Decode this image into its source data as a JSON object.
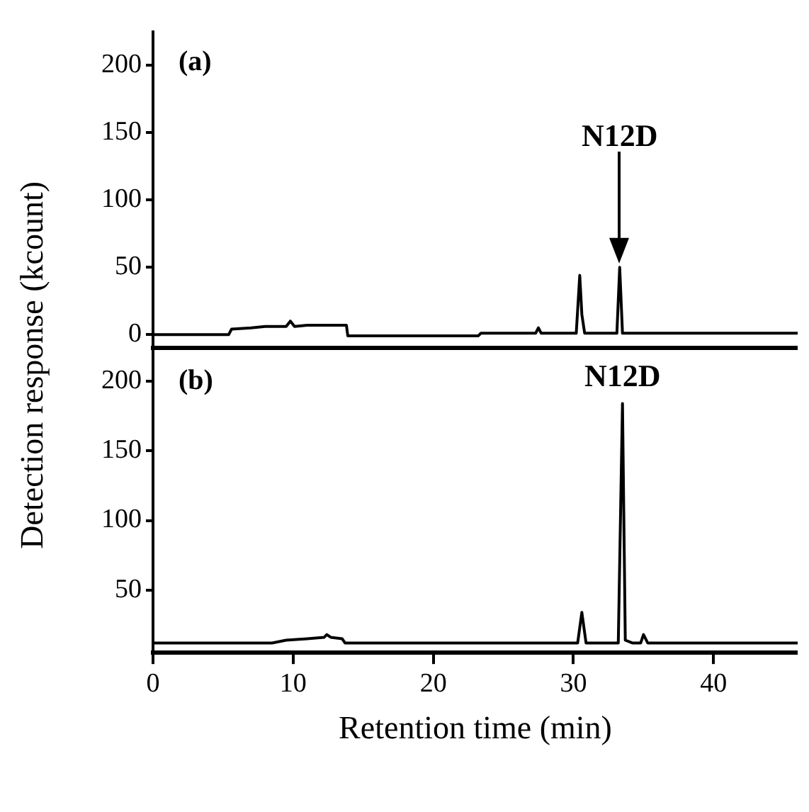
{
  "chart_data": [
    {
      "type": "line",
      "ylabel": "Detection response (kcount)",
      "annotations": [
        "(a)",
        "N12D"
      ],
      "color": "#000000",
      "marker": "none",
      "tick_labels": "y",
      "xlim": [
        0,
        46
      ],
      "ylim": [
        -10,
        225
      ],
      "yticks": [
        0,
        50,
        100,
        150,
        200
      ],
      "x": [
        0,
        5.4,
        5.6,
        7,
        8,
        9.5,
        9.8,
        10.1,
        11,
        12,
        13.8,
        13.9,
        23.2,
        23.4,
        27.3,
        27.5,
        27.7,
        30.2,
        30.45,
        30.6,
        30.8,
        33.1,
        33.3,
        33.5,
        40,
        46
      ],
      "values": [
        0,
        0,
        4,
        5,
        6,
        6,
        10,
        6,
        7,
        7,
        7,
        -1,
        -1,
        1,
        1,
        5,
        1,
        1,
        44,
        15,
        1,
        1,
        50,
        1,
        1,
        1
      ]
    },
    {
      "type": "line",
      "xlabel": "Retention time (min)",
      "annotations": [
        "(b)",
        "N12D"
      ],
      "color": "#000000",
      "marker": "none",
      "xlim": [
        0,
        46
      ],
      "xticks": [
        0,
        10,
        20,
        30,
        40
      ],
      "ylim": [
        5,
        222
      ],
      "yticks": [
        50,
        100,
        150,
        200
      ],
      "x": [
        0,
        8.5,
        9.5,
        11,
        12.2,
        12.4,
        12.7,
        13.5,
        13.7,
        30.3,
        30.6,
        30.9,
        33.2,
        33.5,
        33.7,
        34.2,
        34.8,
        35,
        35.3,
        46
      ],
      "values": [
        12,
        12,
        14,
        15,
        16,
        18,
        16,
        15,
        12,
        12,
        34,
        12,
        12,
        184,
        14,
        12,
        12,
        18,
        12,
        12
      ]
    }
  ]
}
